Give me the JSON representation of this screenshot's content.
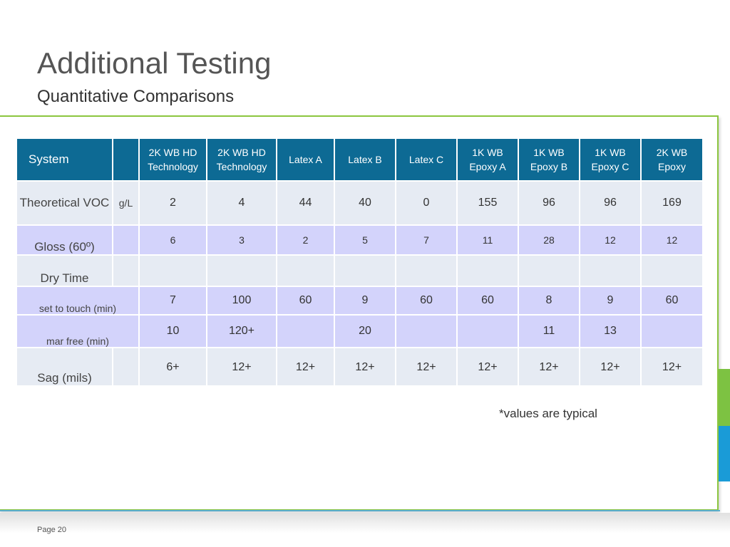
{
  "title": "Additional Testing",
  "subtitle": "Quantitative Comparisons",
  "table": {
    "headers": [
      "System",
      "",
      "2K WB HD Technology",
      "2K WB HD Technology",
      "Latex A",
      "Latex B",
      "Latex C",
      "1K WB Epoxy A",
      "1K WB Epoxy B",
      "1K WB Epoxy C",
      "2K WB Epoxy"
    ],
    "rows": [
      {
        "label": "Theoretical VOC",
        "unit": "g/L",
        "values": [
          "2",
          "4",
          "44",
          "40",
          "0",
          "155",
          "96",
          "96",
          "169"
        ]
      },
      {
        "label": "Gloss (60º)",
        "unit": "",
        "values": [
          "6",
          "3",
          "2",
          "5",
          "7",
          "11",
          "28",
          "12",
          "12"
        ]
      },
      {
        "label": "Dry Time",
        "unit": "",
        "values": [
          "",
          "",
          "",
          "",
          "",
          "",
          "",
          "",
          ""
        ]
      },
      {
        "label": "set to touch (min)",
        "values": [
          "7",
          "100",
          "60",
          "9",
          "60",
          "60",
          "8",
          "9",
          "60"
        ]
      },
      {
        "label": "mar free (min)",
        "values": [
          "10",
          "120+",
          "",
          "20",
          "",
          "",
          "11",
          "13",
          ""
        ]
      },
      {
        "label": "Sag (mils)",
        "unit": "",
        "values": [
          "6+",
          "12+",
          "12+",
          "12+",
          "12+",
          "12+",
          "12+",
          "12+",
          "12+"
        ]
      }
    ]
  },
  "note": "*values are typical",
  "page_number": "Page 20",
  "colors": {
    "header_bg": "#0d6a94",
    "row_light": "#e6ebf3",
    "row_lavender": "#d3d3fb",
    "frame_green": "#8cc63f",
    "accent_green": "#7dc242",
    "accent_blue": "#1a9bd7"
  }
}
